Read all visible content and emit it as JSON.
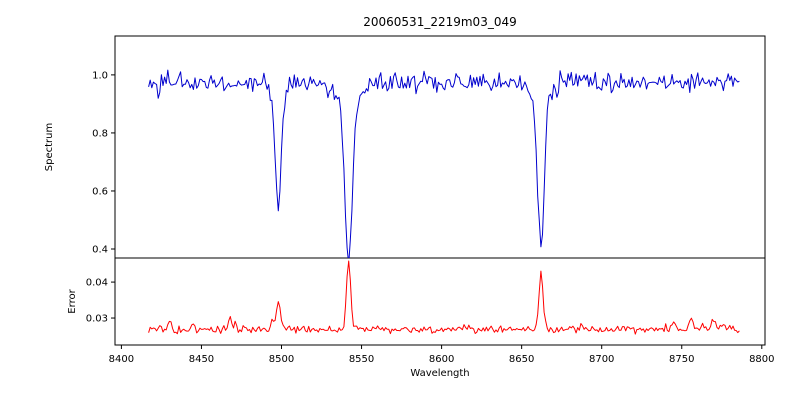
{
  "title": "20060531_2219m03_049",
  "axes": {
    "xlabel": "Wavelength",
    "x_ticks": [
      8400,
      8450,
      8500,
      8550,
      8600,
      8650,
      8700,
      8750,
      8800
    ],
    "spectrum_panel": {
      "ylabel": "Spectrum",
      "y_ticks": [
        0.4,
        0.6,
        0.8,
        1.0
      ]
    },
    "error_panel": {
      "ylabel": "Error",
      "y_ticks": [
        0.03,
        0.04
      ]
    }
  },
  "chart_data": {
    "type": "line",
    "title": "20060531_2219m03_049",
    "xlabel": "Wavelength",
    "xlim": [
      8396,
      8802
    ],
    "x_start": 8417,
    "x_end": 8786,
    "x_step": 1.0,
    "seed": 42,
    "series": [
      {
        "name": "spectrum",
        "panel": "top",
        "color": "#0000cd",
        "ylabel": "Spectrum",
        "ylim_view": [
          0.369,
          1.134
        ],
        "continuum": 0.975,
        "noise_sigma": 0.017,
        "spike_prob": 0.02,
        "spike_amp": 0.05,
        "absorption_lines": [
          {
            "center": 8498,
            "depth": 0.36,
            "sigma": 1.8,
            "min_value": 0.62
          },
          {
            "center": 8498,
            "depth": 0.05,
            "sigma": 5.0,
            "min_value": null
          },
          {
            "center": 8542,
            "depth": 0.56,
            "sigma": 2.2,
            "min_value": 0.42
          },
          {
            "center": 8542,
            "depth": 0.08,
            "sigma": 7.0,
            "min_value": null
          },
          {
            "center": 8662,
            "depth": 0.51,
            "sigma": 2.0,
            "min_value": 0.47
          },
          {
            "center": 8662,
            "depth": 0.06,
            "sigma": 6.0,
            "min_value": null
          }
        ]
      },
      {
        "name": "error",
        "panel": "bottom",
        "color": "#ff0000",
        "ylabel": "Error",
        "ylim_view": [
          0.0225,
          0.0467
        ],
        "baseline": 0.0268,
        "noise_sigma": 0.0005,
        "spike_prob": 0.03,
        "spike_amp": 0.0018,
        "peaks": [
          {
            "center": 8430,
            "amp": 0.0025,
            "sigma": 1.0
          },
          {
            "center": 8445,
            "amp": 0.0015,
            "sigma": 1.0
          },
          {
            "center": 8468,
            "amp": 0.0035,
            "sigma": 1.0
          },
          {
            "center": 8494,
            "amp": 0.002,
            "sigma": 1.0
          },
          {
            "center": 8498,
            "amp": 0.0075,
            "sigma": 1.3,
            "peak_value": 0.035
          },
          {
            "center": 8542,
            "amp": 0.0185,
            "sigma": 1.3,
            "peak_value": 0.045
          },
          {
            "center": 8662,
            "amp": 0.0155,
            "sigma": 1.3,
            "peak_value": 0.042
          },
          {
            "center": 8745,
            "amp": 0.002,
            "sigma": 1.0
          },
          {
            "center": 8756,
            "amp": 0.0035,
            "sigma": 1.2
          },
          {
            "center": 8763,
            "amp": 0.002,
            "sigma": 0.8
          },
          {
            "center": 8770,
            "amp": 0.003,
            "sigma": 1.0
          },
          {
            "center": 8776,
            "amp": 0.002,
            "sigma": 0.8
          }
        ]
      }
    ],
    "legend": "none",
    "grid": false
  }
}
